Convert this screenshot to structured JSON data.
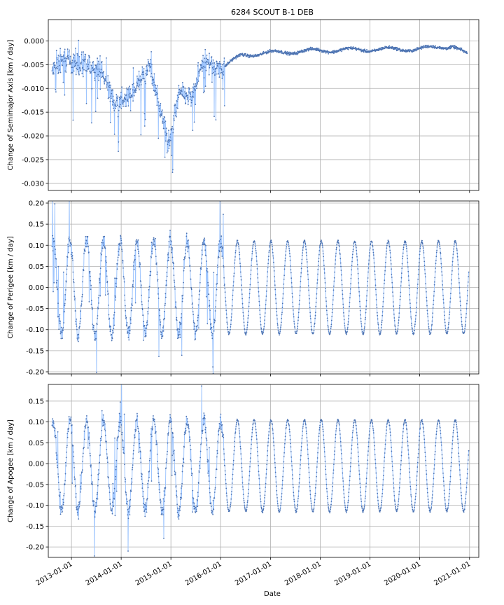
{
  "chart_data": {
    "type": "scatter",
    "title": "6284 SCOUT B-1 DEB",
    "xlabel": "Date",
    "x_tick_labels": [
      "2013-01-01",
      "2014-01-01",
      "2015-01-01",
      "2016-01-01",
      "2017-01-01",
      "2018-01-01",
      "2019-01-01",
      "2020-01-01",
      "2021-01-01"
    ],
    "x_range": [
      "2012-07-15",
      "2021-03-10"
    ],
    "series_color": "#4c72b0",
    "band_color": "#9ec5fe",
    "grid": true,
    "panels": [
      {
        "ylabel": "Change of Semimajor Axis [km / day]",
        "ylim": [
          -0.0315,
          0.0045
        ],
        "y_ticks": [
          0.0,
          -0.005,
          -0.01,
          -0.015,
          -0.02,
          -0.025,
          -0.03
        ],
        "y_tick_labels": [
          "0.000",
          "-0.005",
          "-0.010",
          "-0.015",
          "-0.020",
          "-0.025",
          "-0.030"
        ],
        "key_points": [
          {
            "x": "2012-08-12",
            "y": -0.0065
          },
          {
            "x": "2012-11-01",
            "y": -0.004
          },
          {
            "x": "2013-03-15",
            "y": -0.005
          },
          {
            "x": "2013-08-01",
            "y": -0.006
          },
          {
            "x": "2013-11-15",
            "y": -0.013
          },
          {
            "x": "2014-03-01",
            "y": -0.012
          },
          {
            "x": "2014-08-01",
            "y": -0.005
          },
          {
            "x": "2014-12-15",
            "y": -0.022
          },
          {
            "x": "2015-03-01",
            "y": -0.011
          },
          {
            "x": "2015-06-01",
            "y": -0.012
          },
          {
            "x": "2015-09-01",
            "y": -0.004
          },
          {
            "x": "2016-01-01",
            "y": -0.006
          },
          {
            "x": "2016-06-01",
            "y": -0.003
          },
          {
            "x": "2017-01-01",
            "y": -0.0025
          },
          {
            "x": "2018-01-01",
            "y": -0.002
          },
          {
            "x": "2019-01-01",
            "y": -0.0018
          },
          {
            "x": "2020-01-01",
            "y": -0.0017
          },
          {
            "x": "2020-09-01",
            "y": -0.001
          },
          {
            "x": "2020-12-15",
            "y": -0.003
          }
        ]
      },
      {
        "ylabel": "Change of Perigee [km / day]",
        "ylim": [
          -0.205,
          0.205
        ],
        "y_ticks": [
          0.2,
          0.15,
          0.1,
          0.05,
          0.0,
          -0.05,
          -0.1,
          -0.15,
          -0.2
        ],
        "y_tick_labels": [
          "0.20",
          "0.15",
          "0.10",
          "0.05",
          "0.00",
          "-0.05",
          "-0.10",
          "-0.15",
          "-0.20"
        ],
        "oscillation": {
          "amplitude": 0.11,
          "offset": 0.0,
          "period_days": 123,
          "first_sample": "2012-08-12",
          "last_sample": "2020-12-27"
        }
      },
      {
        "ylabel": "Change of Apogee [km / day]",
        "ylim": [
          -0.225,
          0.19
        ],
        "y_ticks": [
          0.15,
          0.1,
          0.05,
          0.0,
          -0.05,
          -0.1,
          -0.15,
          -0.2
        ],
        "y_tick_labels": [
          "0.15",
          "0.10",
          "0.05",
          "0.00",
          "-0.05",
          "-0.10",
          "-0.15",
          "-0.20"
        ],
        "oscillation": {
          "amplitude": 0.11,
          "offset": -0.005,
          "period_days": 123,
          "first_sample": "2012-08-12",
          "last_sample": "2020-12-27"
        }
      }
    ]
  }
}
